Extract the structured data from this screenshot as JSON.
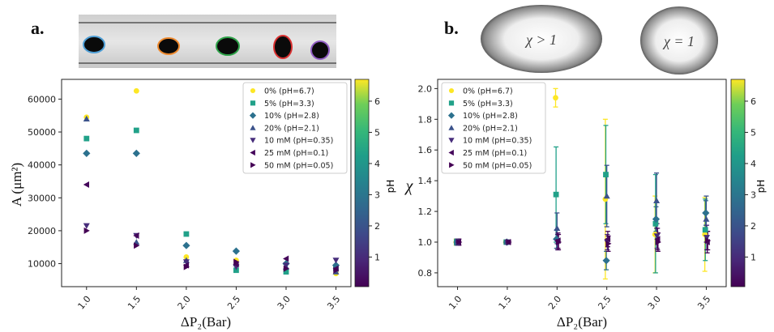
{
  "panels": {
    "a": "a.",
    "b": "b."
  },
  "inset_b": {
    "left_text": "χ > 1",
    "right_text": "χ = 1"
  },
  "colorbar": {
    "label": "pH",
    "ticks": [
      "1",
      "2",
      "3",
      "4",
      "5",
      "6"
    ],
    "range": [
      0.05,
      6.7
    ]
  },
  "series_meta": [
    {
      "name": "0% (pH=6.7)",
      "marker": "circle",
      "color": "#fde725"
    },
    {
      "name": "5% (pH=3.3)",
      "marker": "square",
      "color": "#21a189"
    },
    {
      "name": "10% (pH=2.8)",
      "marker": "diamond",
      "color": "#2c718e"
    },
    {
      "name": "20% (pH=2.1)",
      "marker": "triangle-up",
      "color": "#3b528b"
    },
    {
      "name": "10 mM (pH=0.35)",
      "marker": "triangle-down",
      "color": "#472d7b"
    },
    {
      "name": "25 mM (pH=0.1)",
      "marker": "triangle-left",
      "color": "#45085b"
    },
    {
      "name": "50 mM (pH=0.05)",
      "marker": "triangle-right",
      "color": "#440154"
    }
  ],
  "chart_data": [
    {
      "id": "a",
      "type": "scatter",
      "xlabel": "ΔP₂(Bar)",
      "ylabel": "A (μm²)",
      "xlim": [
        0.75,
        3.65
      ],
      "ylim": [
        3000,
        66000
      ],
      "xticks": [
        1.0,
        1.5,
        2.0,
        2.5,
        3.0,
        3.5
      ],
      "xtick_labels": [
        "1.0",
        "1.5",
        "2.0",
        "2.5",
        "3.0",
        "3.5"
      ],
      "yticks": [
        10000,
        20000,
        30000,
        40000,
        50000,
        60000
      ],
      "ytick_labels": [
        "10000",
        "20000",
        "30000",
        "40000",
        "50000",
        "60000"
      ],
      "series": [
        {
          "name": "0% (pH=6.7)",
          "points": [
            [
              1.0,
              54500
            ],
            [
              1.5,
              62500
            ],
            [
              2.0,
              12000
            ],
            [
              2.5,
              11000
            ],
            [
              3.0,
              8000
            ],
            [
              3.5,
              7000
            ]
          ]
        },
        {
          "name": "5% (pH=3.3)",
          "points": [
            [
              1.0,
              48000
            ],
            [
              1.5,
              50500
            ],
            [
              2.0,
              19000
            ],
            [
              2.5,
              8000
            ],
            [
              3.0,
              7500
            ],
            [
              3.5,
              8500
            ]
          ]
        },
        {
          "name": "10% (pH=2.8)",
          "points": [
            [
              1.0,
              43500
            ],
            [
              1.5,
              43500
            ],
            [
              2.0,
              15500
            ],
            [
              2.5,
              13800
            ],
            [
              3.0,
              10000
            ],
            [
              3.5,
              9500
            ]
          ]
        },
        {
          "name": "20% (pH=2.1)",
          "points": [
            [
              1.0,
              54000
            ],
            [
              1.5,
              16500
            ],
            [
              2.0,
              11000
            ],
            [
              2.5,
              10000
            ],
            [
              3.0,
              9000
            ],
            [
              3.5,
              7500
            ]
          ]
        },
        {
          "name": "10 mM (pH=0.35)",
          "points": [
            [
              1.0,
              21500
            ],
            [
              1.5,
              18500
            ],
            [
              2.0,
              10500
            ],
            [
              2.5,
              9000
            ],
            [
              3.0,
              9500
            ],
            [
              3.5,
              11000
            ]
          ]
        },
        {
          "name": "25 mM (pH=0.1)",
          "points": [
            [
              1.0,
              34000
            ],
            [
              1.5,
              18500
            ],
            [
              2.0,
              9500
            ],
            [
              2.5,
              9800
            ],
            [
              3.0,
              11500
            ],
            [
              3.5,
              8500
            ]
          ]
        },
        {
          "name": "50 mM (pH=0.05)",
          "points": [
            [
              1.0,
              20000
            ],
            [
              1.5,
              15500
            ],
            [
              2.0,
              9000
            ],
            [
              2.5,
              10500
            ],
            [
              3.0,
              8500
            ],
            [
              3.5,
              8000
            ]
          ]
        }
      ]
    },
    {
      "id": "b",
      "type": "scatter",
      "xlabel": "ΔP₂(Bar)",
      "ylabel": "χ",
      "xlim": [
        0.8,
        3.7
      ],
      "ylim": [
        0.71,
        2.06
      ],
      "xticks": [
        1.0,
        1.5,
        2.0,
        2.5,
        3.0,
        3.5
      ],
      "xtick_labels": [
        "1.0",
        "1.5",
        "2.0",
        "2.5",
        "3.0",
        "3.5"
      ],
      "yticks": [
        0.8,
        1.0,
        1.2,
        1.4,
        1.6,
        1.8,
        2.0
      ],
      "ytick_labels": [
        "0.8",
        "1.0",
        "1.2",
        "1.4",
        "1.6",
        "1.8",
        "2.0"
      ],
      "series": [
        {
          "name": "0% (pH=6.7)",
          "points": [
            [
              1.0,
              1.0,
              0.02
            ],
            [
              1.5,
              1.0,
              0.01
            ],
            [
              2.0,
              1.94,
              0.06
            ],
            [
              2.5,
              1.28,
              0.52
            ],
            [
              3.0,
              1.05,
              0.25
            ],
            [
              3.5,
              1.05,
              0.24
            ]
          ]
        },
        {
          "name": "5% (pH=3.3)",
          "points": [
            [
              1.0,
              1.0,
              0.02
            ],
            [
              1.5,
              1.0,
              0.01
            ],
            [
              2.0,
              1.31,
              0.31
            ],
            [
              2.5,
              1.44,
              0.32
            ],
            [
              3.0,
              1.12,
              0.32
            ],
            [
              3.5,
              1.08,
              0.2
            ]
          ]
        },
        {
          "name": "10% (pH=2.8)",
          "points": [
            [
              1.0,
              1.0,
              0.02
            ],
            [
              1.5,
              1.0,
              0.01
            ],
            [
              2.0,
              1.02,
              0.06
            ],
            [
              2.5,
              0.88,
              0.06
            ],
            [
              3.0,
              1.15,
              0.08
            ],
            [
              3.5,
              1.19,
              0.08
            ]
          ]
        },
        {
          "name": "20% (pH=2.1)",
          "points": [
            [
              1.0,
              1.0,
              0.02
            ],
            [
              1.5,
              1.0,
              0.01
            ],
            [
              2.0,
              1.09,
              0.1
            ],
            [
              2.5,
              1.3,
              0.2
            ],
            [
              3.0,
              1.27,
              0.18
            ],
            [
              3.5,
              1.15,
              0.15
            ]
          ]
        },
        {
          "name": "10 mM (pH=0.35)",
          "points": [
            [
              1.0,
              1.0,
              0.02
            ],
            [
              1.5,
              1.0,
              0.01
            ],
            [
              2.0,
              1.0,
              0.05
            ],
            [
              2.5,
              1.0,
              0.05
            ],
            [
              3.0,
              1.04,
              0.08
            ],
            [
              3.5,
              1.03,
              0.08
            ]
          ]
        },
        {
          "name": "25 mM (pH=0.1)",
          "points": [
            [
              1.0,
              1.0,
              0.02
            ],
            [
              1.5,
              1.0,
              0.01
            ],
            [
              2.0,
              1.01,
              0.05
            ],
            [
              2.5,
              1.02,
              0.05
            ],
            [
              3.0,
              1.02,
              0.07
            ],
            [
              3.5,
              1.0,
              0.07
            ]
          ]
        },
        {
          "name": "50 mM (pH=0.05)",
          "points": [
            [
              1.0,
              1.0,
              0.02
            ],
            [
              1.5,
              1.0,
              0.01
            ],
            [
              2.0,
              1.0,
              0.05
            ],
            [
              2.5,
              0.99,
              0.05
            ],
            [
              3.0,
              1.0,
              0.06
            ],
            [
              3.5,
              1.01,
              0.06
            ]
          ]
        }
      ]
    }
  ]
}
